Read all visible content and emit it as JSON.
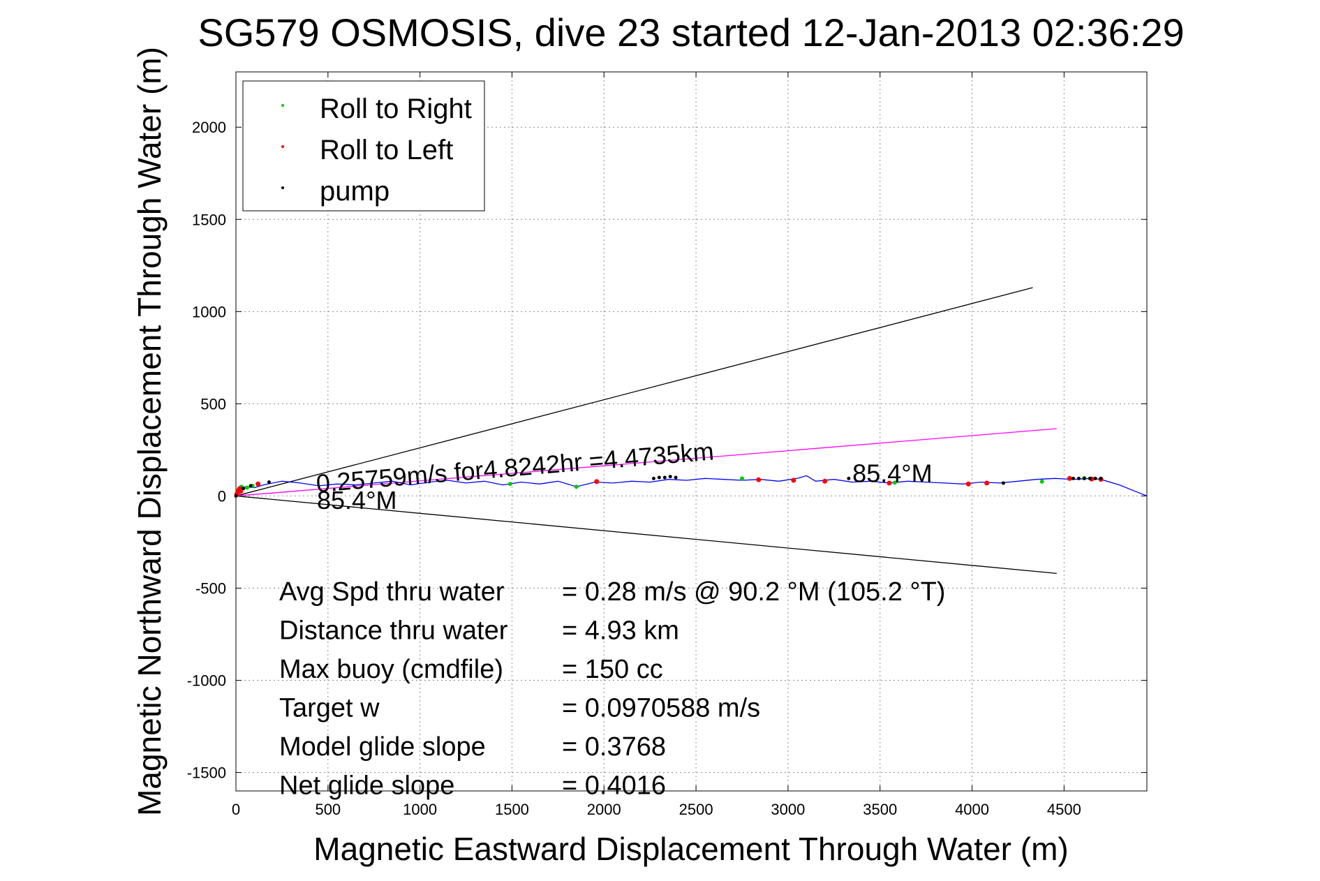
{
  "chart_data": {
    "type": "scatter",
    "title": "SG579 OSMOSIS, dive 23 started 12-Jan-2013 02:36:29",
    "xlabel": "Magnetic Eastward Displacement Through Water (m)",
    "ylabel": "Magnetic Northward Displacement Through Water (m)",
    "xlim": [
      0,
      4950
    ],
    "ylim": [
      -1600,
      2300
    ],
    "xticks": [
      0,
      500,
      1000,
      1500,
      2000,
      2500,
      3000,
      3500,
      4000,
      4500
    ],
    "yticks": [
      -1500,
      -1000,
      -500,
      0,
      500,
      1000,
      1500,
      2000
    ],
    "grid": true,
    "legend_position": "top-left",
    "legend": [
      {
        "label": "Roll to Right",
        "color": "#00cc00"
      },
      {
        "label": "Roll to Left",
        "color": "#ff0000"
      },
      {
        "label": "pump",
        "color": "#000000"
      }
    ],
    "track": {
      "color": "#0000ff",
      "x": [
        0,
        50,
        100,
        150,
        250,
        350,
        450,
        550,
        650,
        750,
        850,
        950,
        1050,
        1150,
        1250,
        1350,
        1450,
        1550,
        1650,
        1750,
        1850,
        1950,
        2050,
        2150,
        2250,
        2350,
        2450,
        2550,
        2650,
        2750,
        2850,
        2950,
        3050,
        3100,
        3150,
        3250,
        3350,
        3450,
        3550,
        3650,
        3750,
        3850,
        3950,
        4050,
        4150,
        4250,
        4350,
        4450,
        4550,
        4650,
        4700,
        4800,
        4900,
        4950
      ],
      "y": [
        20,
        50,
        45,
        60,
        80,
        70,
        55,
        65,
        60,
        70,
        80,
        60,
        75,
        85,
        70,
        80,
        60,
        75,
        65,
        80,
        50,
        75,
        70,
        80,
        75,
        90,
        85,
        95,
        90,
        85,
        90,
        80,
        95,
        110,
        80,
        90,
        75,
        80,
        70,
        80,
        75,
        70,
        65,
        75,
        70,
        80,
        90,
        95,
        90,
        95,
        90,
        60,
        20,
        0
      ]
    },
    "roll_to_right": {
      "x": [
        30,
        60,
        90,
        1490,
        1850,
        2750,
        3580,
        4380,
        4610
      ],
      "y": [
        50,
        45,
        55,
        65,
        50,
        95,
        72,
        78,
        97
      ]
    },
    "roll_to_left": {
      "x": [
        5,
        10,
        15,
        20,
        25,
        120,
        1960,
        2840,
        3030,
        3200,
        3550,
        3980,
        4080,
        4530,
        4650,
        4700
      ],
      "y": [
        10,
        20,
        30,
        40,
        25,
        65,
        78,
        88,
        85,
        80,
        70,
        65,
        70,
        95,
        92,
        90
      ]
    },
    "pump": {
      "x": [
        0,
        40,
        80,
        180,
        2270,
        2300,
        2330,
        2360,
        2390,
        3330,
        4170,
        4550,
        4580,
        4610,
        4640,
        4670,
        4700
      ],
      "y": [
        0,
        40,
        55,
        75,
        95,
        100,
        100,
        105,
        100,
        95,
        70,
        95,
        95,
        95,
        95,
        95,
        95
      ]
    },
    "lines": [
      {
        "color": "#000000",
        "x": [
          0,
          4330
        ],
        "y": [
          0,
          1130
        ]
      },
      {
        "color": "#000000",
        "x": [
          0,
          4460
        ],
        "y": [
          0,
          -420
        ]
      },
      {
        "color": "#ff00ff",
        "x": [
          0,
          4460
        ],
        "y": [
          0,
          365
        ]
      }
    ],
    "annotations": [
      {
        "text": "0.25759m/s for4.8242hr =4.4735km",
        "x": 440,
        "y": 20,
        "angle_deg": 4.7
      },
      {
        "text": "85.4°M",
        "x": 3350,
        "y": 75,
        "angle_deg": 0
      },
      {
        "text": "85.4°M",
        "x": 440,
        "y": -70,
        "angle_deg": 0
      }
    ],
    "stats": [
      {
        "label": "Avg Spd thru water",
        "value": "=  0.28 m/s @  90.2 °M (105.2 °T)"
      },
      {
        "label": "Distance thru water",
        "value": "=  4.93 km"
      },
      {
        "label": "Max buoy (cmdfile)",
        "value": "= 150 cc"
      },
      {
        "label": "Target w",
        "value": "= 0.0970588 m/s"
      },
      {
        "label": "Model glide slope",
        "value": "= 0.3768"
      },
      {
        "label": "Net glide slope",
        "value": "= 0.4016"
      }
    ]
  }
}
